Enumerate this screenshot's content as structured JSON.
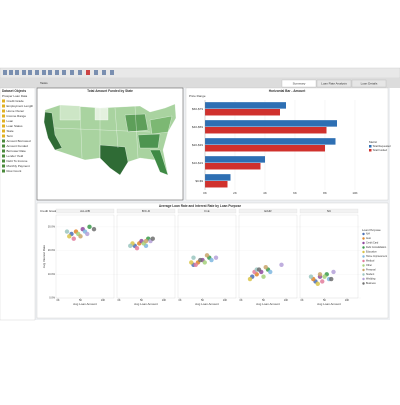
{
  "workspace": {
    "left_tab": "Tasks",
    "tabs": [
      "Summary",
      "Loan Rate Analysis",
      "Loan Details"
    ]
  },
  "sidebar": {
    "title": "Dataset Objects",
    "dataset": "Prosper Loan Data",
    "items": [
      "Credit Grade",
      "Employment Length",
      "Home Owner",
      "Income Range",
      "Loan",
      "Loan Status",
      "State",
      "Term",
      "Amount Borrowed",
      "Amount Funded",
      "Borrower Rate",
      "Lender Yield",
      "Debt To Income",
      "Monthly Payment",
      "Row Count"
    ]
  },
  "map": {
    "title": "Total Amount Funded by State"
  },
  "bar_chart": {
    "type": "bar",
    "orientation": "horizontal",
    "title": "Horizontal Bar - Amount",
    "category_label": "Price Range",
    "categories": [
      "$60-$79",
      "$40-$59",
      "$20-$39",
      "$10-$19",
      "$0-$9"
    ],
    "series": [
      {
        "name": "Total Requested",
        "color": "#2e6fb3",
        "values": [
          5400,
          8800,
          8700,
          4000,
          1700
        ]
      },
      {
        "name": "Total Funded",
        "color": "#d0312d",
        "values": [
          5000,
          8100,
          8000,
          3700,
          1500
        ]
      }
    ],
    "xlim": [
      0,
      10000
    ],
    "xticks": [
      {
        "value": 0,
        "label": "0K"
      },
      {
        "value": 2000,
        "label": "2K"
      },
      {
        "value": 4000,
        "label": "4K"
      },
      {
        "value": 6000,
        "label": "6K"
      },
      {
        "value": 8000,
        "label": "8K"
      },
      {
        "value": 10000,
        "label": "10K"
      }
    ],
    "legend_title": "Metric"
  },
  "scatter_chart": {
    "type": "scatter",
    "title": "Average Loan Rate and Interest Rate by Loan Purpose",
    "facet_label": "Credit Grade",
    "facets": [
      "AA-A/B",
      "B/C-D",
      "D-E",
      "E/HR",
      "NC"
    ],
    "x_label": "Avg Loan Amount",
    "y_label": "Avg Interest Rate",
    "legend_title": "Loan Purpose",
    "xlim": [
      0,
      12000
    ],
    "xticks": [
      {
        "value": 0,
        "label": "0K"
      },
      {
        "value": 5000,
        "label": "5K"
      },
      {
        "value": 10000,
        "label": "10K"
      }
    ],
    "ylim": [
      0,
      35
    ],
    "yticks": [
      {
        "value": 0,
        "label": "0.0%"
      },
      {
        "value": 10,
        "label": "10.0%"
      },
      {
        "value": 20,
        "label": "20.0%"
      },
      {
        "value": 30,
        "label": "30.0%"
      }
    ],
    "series": [
      {
        "name": "N/A",
        "color": "#4b6fb5",
        "points": [
          [
            3000,
            27
          ],
          [
            3500,
            22
          ],
          [
            3000,
            14
          ],
          [
            2500,
            9
          ],
          [
            3000,
            7
          ]
        ]
      },
      {
        "name": "Auto",
        "color": "#e0852a",
        "points": [
          [
            4000,
            28
          ],
          [
            4500,
            23
          ],
          [
            4000,
            15
          ],
          [
            3500,
            10
          ],
          [
            2500,
            8
          ]
        ]
      },
      {
        "name": "Credit Card",
        "color": "#8f4a9e",
        "points": [
          [
            5500,
            29
          ],
          [
            5000,
            24
          ],
          [
            5000,
            16
          ],
          [
            4500,
            11
          ],
          [
            4000,
            9
          ]
        ]
      },
      {
        "name": "Debt Consolidation",
        "color": "#3a9a4a",
        "points": [
          [
            7000,
            30
          ],
          [
            6500,
            25
          ],
          [
            6500,
            17
          ],
          [
            6000,
            12
          ],
          [
            5500,
            10
          ]
        ]
      },
      {
        "name": "Education",
        "color": "#d9c44a",
        "points": [
          [
            2500,
            26
          ],
          [
            3000,
            23
          ],
          [
            2500,
            15
          ],
          [
            2000,
            8
          ],
          [
            3500,
            6
          ]
        ]
      },
      {
        "name": "Home Improvement",
        "color": "#7fb7e0",
        "points": [
          [
            6000,
            28
          ],
          [
            6000,
            22
          ],
          [
            7000,
            16
          ],
          [
            6500,
            11
          ],
          [
            6000,
            8
          ]
        ]
      },
      {
        "name": "Medical",
        "color": "#e27c9c",
        "points": [
          [
            3500,
            25
          ],
          [
            4000,
            21
          ],
          [
            3500,
            14
          ],
          [
            3000,
            11
          ],
          [
            4500,
            7
          ]
        ]
      },
      {
        "name": "Other",
        "color": "#a5d17a",
        "points": [
          [
            4500,
            27
          ],
          [
            5500,
            23
          ],
          [
            5500,
            15
          ],
          [
            5000,
            9
          ],
          [
            5000,
            9
          ]
        ]
      },
      {
        "name": "Personal",
        "color": "#c9a46a",
        "points": [
          [
            5000,
            26
          ],
          [
            6000,
            24
          ],
          [
            6000,
            18
          ],
          [
            5500,
            13
          ],
          [
            4000,
            10
          ]
        ]
      },
      {
        "name": "Student",
        "color": "#9ac5c0",
        "points": [
          [
            2000,
            28
          ],
          [
            2500,
            22
          ],
          [
            3000,
            17
          ],
          [
            3500,
            12
          ],
          [
            2000,
            9
          ]
        ]
      },
      {
        "name": "Wedding",
        "color": "#b4a0d8",
        "points": [
          [
            6500,
            27
          ],
          [
            7000,
            24
          ],
          [
            8000,
            17
          ],
          [
            9000,
            14
          ],
          [
            7000,
            11
          ]
        ]
      },
      {
        "name": "Business",
        "color": "#6e6e6e",
        "points": [
          [
            8000,
            29
          ],
          [
            7500,
            25
          ],
          [
            4500,
            16
          ],
          [
            4000,
            12
          ],
          [
            6500,
            8
          ]
        ]
      }
    ]
  }
}
